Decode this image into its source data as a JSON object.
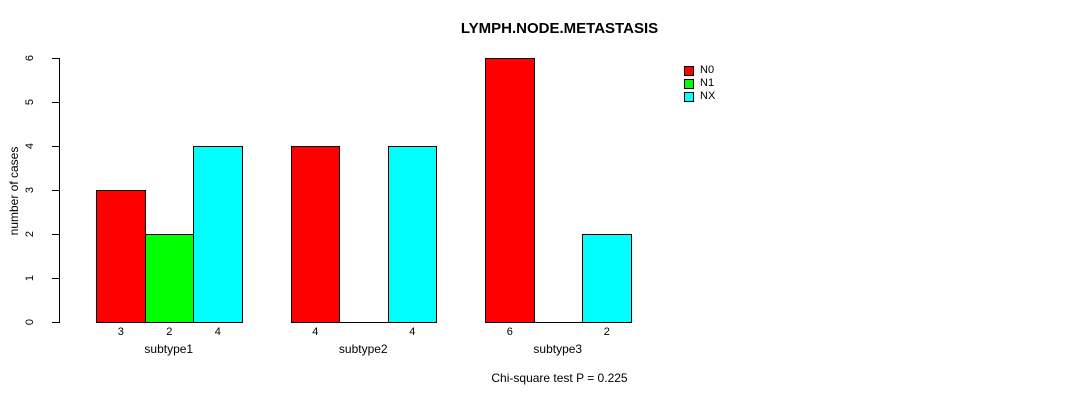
{
  "chart_data": {
    "type": "bar",
    "title": "LYMPH.NODE.METASTASIS",
    "xlabel": "",
    "ylabel": "number of cases",
    "categories": [
      "subtype1",
      "subtype2",
      "subtype3"
    ],
    "series": [
      {
        "name": "N0",
        "color": "#FF0000",
        "values": [
          3,
          4,
          6
        ]
      },
      {
        "name": "N1",
        "color": "#00FF00",
        "values": [
          2,
          0,
          0
        ]
      },
      {
        "name": "NX",
        "color": "#00FFFF",
        "values": [
          4,
          4,
          2
        ]
      }
    ],
    "ylim": [
      0,
      6
    ],
    "yticks": [
      0,
      1,
      2,
      3,
      4,
      5,
      6
    ],
    "bar_value_labels_shown_for_nonzero_only": true,
    "grid": false,
    "legend": {
      "position": "top-right",
      "entries": [
        "N0",
        "N1",
        "NX"
      ]
    },
    "annotation": "Chi-square test P = 0.225"
  }
}
